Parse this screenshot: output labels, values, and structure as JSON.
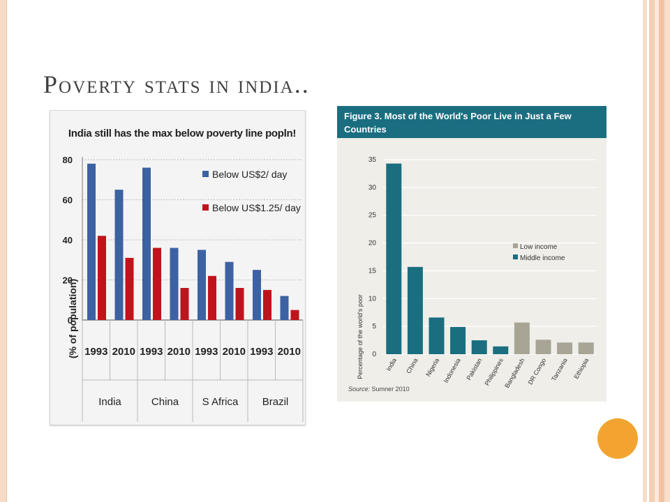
{
  "slide": {
    "title": "Poverty stats in india..",
    "accent_color": "#f3a430",
    "border_color": "#f4cfb3"
  },
  "chart_data": [
    {
      "type": "bar",
      "title": "India still has the max below poverty line popln!",
      "ylabel": "(% of population)",
      "ylim": [
        0,
        80
      ],
      "yticks": [
        0,
        20,
        40,
        60,
        80
      ],
      "groups": [
        "India",
        "China",
        "S Africa",
        "Brazil"
      ],
      "categories": [
        "1993",
        "2010",
        "1993",
        "2010",
        "1993",
        "2010",
        "1993",
        "2010"
      ],
      "series": [
        {
          "name": "Below US$2/ day",
          "color": "#3d62a3",
          "values": [
            78,
            65,
            76,
            36,
            35,
            29,
            25,
            12
          ]
        },
        {
          "name": "Below US$1.25/ day",
          "color": "#c0141c",
          "values": [
            42,
            31,
            36,
            16,
            22,
            16,
            15,
            5
          ]
        }
      ],
      "legend_position": "right",
      "grid": true
    },
    {
      "type": "bar",
      "title": "Figure 3. Most of the World's Poor Live in Just a Few Countries",
      "ylabel": "Percentage of the world's poor",
      "ylim": [
        0,
        35
      ],
      "yticks": [
        0,
        5,
        10,
        15,
        20,
        25,
        30,
        35
      ],
      "categories": [
        "India",
        "China",
        "Nigeria",
        "Indonesia",
        "Pakistan",
        "Philippines",
        "Bangladesh",
        "DR Congo",
        "Tanzania",
        "Ethiopia"
      ],
      "values": [
        34.3,
        15.7,
        6.6,
        4.9,
        2.5,
        1.4,
        5.7,
        2.6,
        2.1,
        2.1
      ],
      "income_group": [
        "Middle income",
        "Middle income",
        "Middle income",
        "Middle income",
        "Middle income",
        "Middle income",
        "Low income",
        "Low income",
        "Low income",
        "Low income"
      ],
      "legend": [
        {
          "name": "Low income",
          "color": "#a8a596"
        },
        {
          "name": "Middle income",
          "color": "#1a6e80"
        }
      ],
      "legend_position": "right",
      "grid": true,
      "source_label": "Source:",
      "source_text": "Sumner 2010"
    }
  ]
}
